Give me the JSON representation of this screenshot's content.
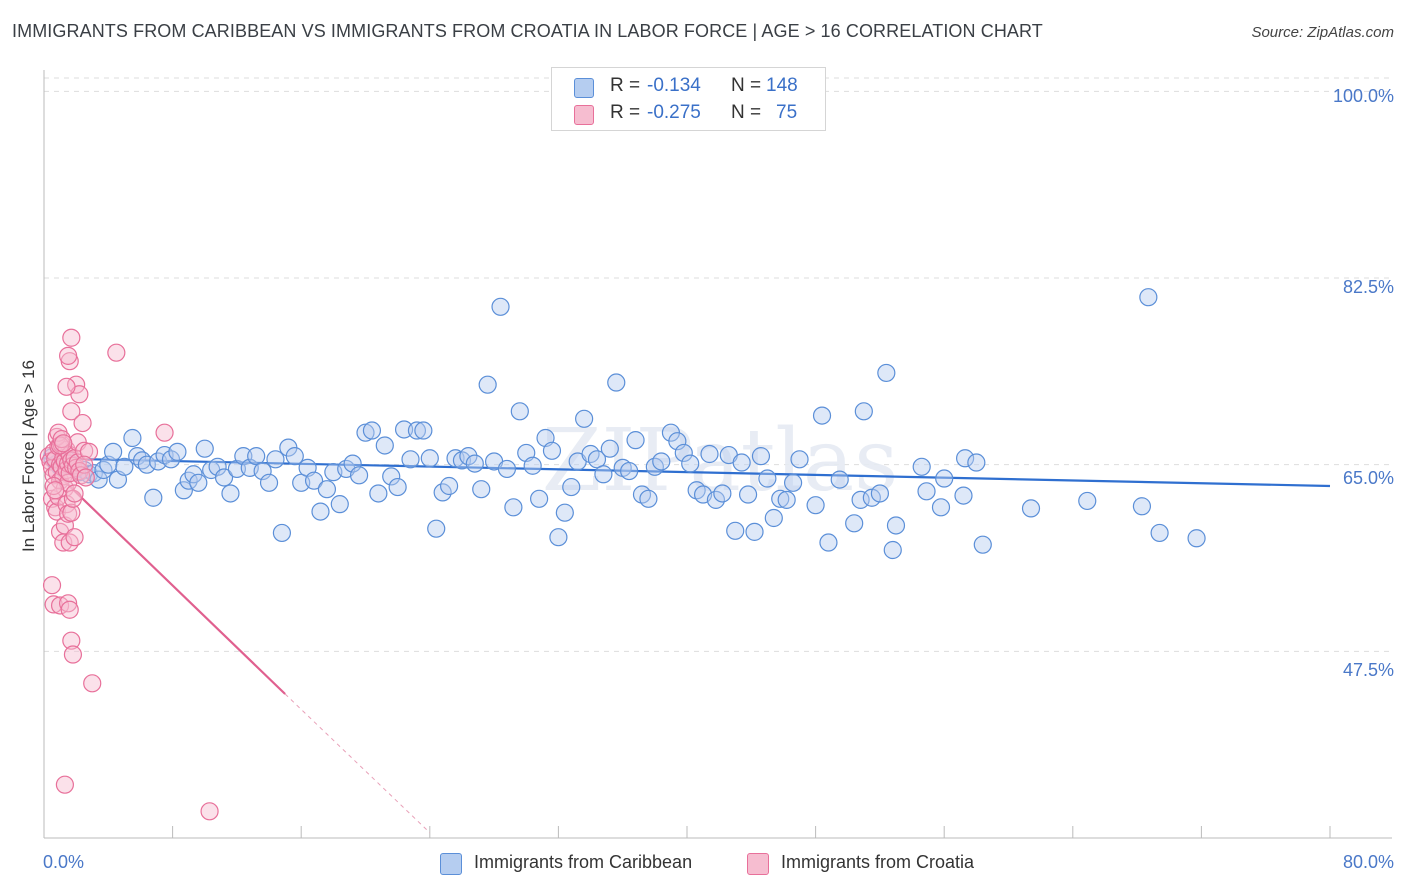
{
  "title": "IMMIGRANTS FROM CARIBBEAN VS IMMIGRANTS FROM CROATIA IN LABOR FORCE | AGE > 16 CORRELATION CHART",
  "source": "Source: ZipAtlas.com",
  "watermark": "ZIPatlas",
  "colors": {
    "blue": "#5b8fd8",
    "blue_fill": "#b5cdf0",
    "pink": "#e8709a",
    "pink_fill": "#f6bdd0",
    "axis_text": "#4a78c8",
    "grid": "#dddddd"
  },
  "legend": {
    "rows": [
      {
        "r_label": "R =",
        "r_value": "-0.134",
        "n_label": "N =",
        "n_value": "148",
        "color": "blue"
      },
      {
        "r_label": "R =",
        "r_value": "-0.275",
        "n_label": "N =",
        "n_value": "75",
        "color": "pink"
      }
    ]
  },
  "bottom_legend": [
    {
      "label": "Immigrants from Caribbean",
      "color": "blue"
    },
    {
      "label": "Immigrants from Croatia",
      "color": "pink"
    }
  ],
  "chart_data": {
    "type": "scatter",
    "title": "IMMIGRANTS FROM CARIBBEAN VS IMMIGRANTS FROM CROATIA IN LABOR FORCE | AGE > 16 CORRELATION CHART",
    "xlabel": "",
    "ylabel": "In Labor Force | Age > 16",
    "xlim": [
      0,
      80
    ],
    "ylim": [
      30,
      102
    ],
    "x_tick_labels": [
      {
        "value": 0,
        "label": "0.0%"
      },
      {
        "value": 80,
        "label": "80.0%"
      }
    ],
    "y_tick_labels": [
      {
        "value": 100,
        "label": "100.0%"
      },
      {
        "value": 82.5,
        "label": "82.5%"
      },
      {
        "value": 65,
        "label": "65.0%"
      },
      {
        "value": 47.5,
        "label": "47.5%"
      }
    ],
    "grid": true,
    "legend_position": "top-center",
    "series": [
      {
        "name": "Immigrants from Caribbean",
        "color": "blue",
        "trend": {
          "x": [
            0,
            80
          ],
          "y": [
            65.6,
            63.0
          ]
        },
        "points": [
          [
            0.5,
            65.7
          ],
          [
            0.8,
            65.1
          ],
          [
            1.0,
            64.8
          ],
          [
            1.2,
            65.2
          ],
          [
            1.4,
            65.5
          ],
          [
            1.6,
            64.9
          ],
          [
            1.8,
            65.0
          ],
          [
            2.0,
            64.6
          ],
          [
            2.2,
            64.3
          ],
          [
            2.5,
            64.5
          ],
          [
            2.8,
            64.1
          ],
          [
            3.1,
            64.2
          ],
          [
            3.4,
            63.6
          ],
          [
            3.7,
            64.5
          ],
          [
            4.0,
            65.0
          ],
          [
            4.3,
            66.2
          ],
          [
            4.6,
            63.6
          ],
          [
            5.0,
            64.8
          ],
          [
            5.5,
            67.5
          ],
          [
            5.8,
            65.8
          ],
          [
            6.1,
            65.4
          ],
          [
            6.4,
            65.0
          ],
          [
            6.8,
            61.9
          ],
          [
            7.1,
            65.3
          ],
          [
            7.5,
            65.9
          ],
          [
            7.9,
            65.5
          ],
          [
            8.3,
            66.2
          ],
          [
            8.7,
            62.6
          ],
          [
            9.0,
            63.5
          ],
          [
            9.3,
            64.1
          ],
          [
            9.6,
            63.3
          ],
          [
            10.0,
            66.5
          ],
          [
            10.4,
            64.5
          ],
          [
            10.8,
            64.8
          ],
          [
            11.2,
            63.8
          ],
          [
            11.6,
            62.3
          ],
          [
            12.0,
            64.6
          ],
          [
            12.4,
            65.8
          ],
          [
            12.8,
            64.7
          ],
          [
            13.2,
            65.8
          ],
          [
            13.6,
            64.4
          ],
          [
            14.0,
            63.3
          ],
          [
            14.4,
            65.5
          ],
          [
            14.8,
            58.6
          ],
          [
            15.2,
            66.6
          ],
          [
            15.6,
            65.8
          ],
          [
            16.0,
            63.3
          ],
          [
            16.4,
            64.7
          ],
          [
            16.8,
            63.5
          ],
          [
            17.2,
            60.6
          ],
          [
            17.6,
            62.7
          ],
          [
            18.0,
            64.3
          ],
          [
            18.4,
            61.3
          ],
          [
            18.8,
            64.6
          ],
          [
            19.2,
            65.1
          ],
          [
            19.6,
            64.0
          ],
          [
            20.0,
            68.0
          ],
          [
            20.4,
            68.2
          ],
          [
            20.8,
            62.3
          ],
          [
            21.2,
            66.8
          ],
          [
            21.6,
            63.9
          ],
          [
            22.0,
            62.9
          ],
          [
            22.4,
            68.3
          ],
          [
            22.8,
            65.5
          ],
          [
            23.2,
            68.2
          ],
          [
            23.6,
            68.2
          ],
          [
            24.0,
            65.6
          ],
          [
            24.4,
            59.0
          ],
          [
            24.8,
            62.4
          ],
          [
            25.2,
            63.0
          ],
          [
            25.6,
            65.6
          ],
          [
            26.0,
            65.4
          ],
          [
            26.4,
            65.8
          ],
          [
            26.8,
            65.1
          ],
          [
            27.2,
            62.7
          ],
          [
            27.6,
            72.5
          ],
          [
            28.0,
            65.3
          ],
          [
            28.4,
            79.8
          ],
          [
            28.8,
            64.6
          ],
          [
            29.2,
            61.0
          ],
          [
            29.6,
            70.0
          ],
          [
            30.0,
            66.1
          ],
          [
            30.4,
            64.9
          ],
          [
            30.8,
            61.8
          ],
          [
            31.2,
            67.5
          ],
          [
            31.6,
            66.3
          ],
          [
            32.0,
            58.2
          ],
          [
            32.4,
            60.5
          ],
          [
            32.8,
            62.9
          ],
          [
            33.2,
            65.3
          ],
          [
            33.6,
            69.3
          ],
          [
            34.0,
            66.0
          ],
          [
            34.4,
            65.5
          ],
          [
            34.8,
            64.1
          ],
          [
            35.2,
            66.5
          ],
          [
            35.6,
            72.7
          ],
          [
            36.0,
            64.7
          ],
          [
            36.4,
            64.4
          ],
          [
            36.8,
            67.3
          ],
          [
            37.2,
            62.2
          ],
          [
            37.6,
            61.8
          ],
          [
            38.0,
            64.8
          ],
          [
            38.4,
            65.3
          ],
          [
            39.0,
            68.0
          ],
          [
            39.4,
            67.2
          ],
          [
            39.8,
            66.1
          ],
          [
            40.2,
            65.1
          ],
          [
            40.6,
            62.6
          ],
          [
            41.0,
            62.2
          ],
          [
            41.4,
            66.0
          ],
          [
            41.8,
            61.7
          ],
          [
            42.2,
            62.3
          ],
          [
            42.6,
            65.9
          ],
          [
            43.0,
            58.8
          ],
          [
            43.4,
            65.2
          ],
          [
            43.8,
            62.2
          ],
          [
            44.2,
            58.7
          ],
          [
            44.6,
            65.8
          ],
          [
            45.0,
            63.7
          ],
          [
            45.4,
            60.0
          ],
          [
            45.8,
            61.8
          ],
          [
            46.2,
            61.7
          ],
          [
            46.6,
            63.3
          ],
          [
            47.0,
            65.5
          ],
          [
            48.0,
            61.2
          ],
          [
            48.4,
            69.6
          ],
          [
            48.8,
            57.7
          ],
          [
            49.5,
            63.6
          ],
          [
            50.4,
            59.5
          ],
          [
            50.8,
            61.7
          ],
          [
            51.0,
            70.0
          ],
          [
            51.5,
            61.9
          ],
          [
            52.4,
            73.6
          ],
          [
            53.0,
            59.3
          ],
          [
            52.8,
            57.0
          ],
          [
            54.9,
            62.5
          ],
          [
            54.6,
            64.8
          ],
          [
            55.8,
            61.0
          ],
          [
            56.0,
            63.7
          ],
          [
            57.3,
            65.6
          ],
          [
            58.4,
            57.5
          ],
          [
            57.2,
            62.1
          ],
          [
            58.0,
            65.2
          ],
          [
            61.4,
            60.9
          ],
          [
            64.9,
            61.6
          ],
          [
            68.3,
            61.1
          ],
          [
            69.4,
            58.6
          ],
          [
            68.7,
            80.7
          ],
          [
            71.7,
            58.1
          ],
          [
            52.0,
            62.3
          ]
        ]
      },
      {
        "name": "Immigrants from Croatia",
        "color": "pink",
        "trend": {
          "x": [
            0,
            15
          ],
          "y": [
            65.3,
            43.5
          ]
        },
        "trend_dashed": {
          "x": [
            15,
            24
          ],
          "y": [
            43.5,
            30.5
          ]
        },
        "points": [
          [
            0.3,
            65.8
          ],
          [
            0.4,
            65.3
          ],
          [
            0.5,
            64.7
          ],
          [
            0.6,
            66.2
          ],
          [
            0.6,
            64.0
          ],
          [
            0.7,
            65.5
          ],
          [
            0.8,
            64.3
          ],
          [
            0.9,
            66.7
          ],
          [
            1.0,
            65.0
          ],
          [
            1.0,
            63.5
          ],
          [
            1.1,
            66.9
          ],
          [
            1.1,
            64.8
          ],
          [
            1.2,
            65.6
          ],
          [
            1.2,
            63.9
          ],
          [
            1.3,
            65.3
          ],
          [
            1.3,
            62.8
          ],
          [
            1.4,
            66.4
          ],
          [
            1.4,
            64.5
          ],
          [
            1.5,
            65.1
          ],
          [
            1.5,
            63.3
          ],
          [
            1.6,
            65.9
          ],
          [
            1.6,
            64.2
          ],
          [
            1.7,
            65.4
          ],
          [
            1.8,
            64.9
          ],
          [
            1.9,
            65.6
          ],
          [
            2.0,
            64.7
          ],
          [
            2.1,
            65.2
          ],
          [
            2.2,
            64.4
          ],
          [
            0.5,
            61.8
          ],
          [
            0.7,
            61.0
          ],
          [
            0.8,
            60.6
          ],
          [
            0.9,
            62.0
          ],
          [
            1.0,
            58.7
          ],
          [
            1.2,
            57.7
          ],
          [
            1.3,
            59.3
          ],
          [
            1.4,
            61.3
          ],
          [
            1.5,
            60.4
          ],
          [
            1.6,
            57.7
          ],
          [
            1.7,
            60.5
          ],
          [
            1.8,
            61.8
          ],
          [
            1.9,
            62.3
          ],
          [
            0.5,
            53.7
          ],
          [
            0.6,
            51.9
          ],
          [
            1.0,
            51.8
          ],
          [
            1.5,
            52.0
          ],
          [
            1.6,
            51.4
          ],
          [
            1.7,
            48.5
          ],
          [
            1.8,
            47.2
          ],
          [
            2.0,
            72.5
          ],
          [
            2.2,
            71.6
          ],
          [
            1.7,
            70.0
          ],
          [
            1.4,
            72.3
          ],
          [
            1.6,
            74.7
          ],
          [
            1.5,
            75.2
          ],
          [
            1.7,
            76.9
          ],
          [
            2.1,
            67.1
          ],
          [
            2.4,
            68.9
          ],
          [
            2.5,
            66.3
          ],
          [
            2.8,
            66.2
          ],
          [
            7.5,
            68.0
          ],
          [
            4.5,
            75.5
          ],
          [
            3.0,
            44.5
          ],
          [
            1.3,
            35.0
          ],
          [
            10.3,
            32.5
          ],
          [
            0.8,
            67.6
          ],
          [
            0.9,
            68.0
          ],
          [
            1.0,
            66.8
          ],
          [
            1.1,
            67.4
          ],
          [
            1.2,
            67.0
          ],
          [
            0.6,
            63.0
          ],
          [
            0.7,
            62.6
          ],
          [
            2.3,
            64.0
          ],
          [
            2.5,
            65.0
          ],
          [
            2.6,
            63.8
          ],
          [
            1.9,
            58.2
          ]
        ]
      }
    ]
  }
}
